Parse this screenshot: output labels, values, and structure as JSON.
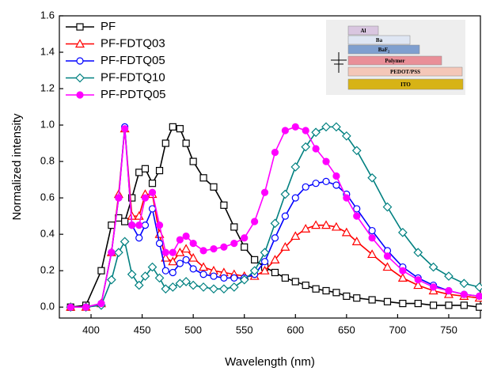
{
  "chart_data": {
    "type": "line",
    "xlabel": "Wavelength (nm)",
    "ylabel": "Normalized intensity",
    "x": [
      380,
      395,
      410,
      420,
      427,
      433,
      440,
      447,
      453,
      460,
      467,
      473,
      480,
      487,
      493,
      500,
      510,
      520,
      530,
      540,
      550,
      560,
      570,
      580,
      590,
      600,
      610,
      620,
      630,
      640,
      650,
      660,
      675,
      690,
      705,
      720,
      735,
      750,
      765,
      780
    ],
    "series": [
      {
        "name": "PF",
        "color": "#000000",
        "marker": "square",
        "values": [
          0,
          0.01,
          0.2,
          0.45,
          0.49,
          0.47,
          0.6,
          0.74,
          0.76,
          0.68,
          0.75,
          0.9,
          0.99,
          0.98,
          0.9,
          0.8,
          0.71,
          0.66,
          0.56,
          0.44,
          0.33,
          0.26,
          0.22,
          0.19,
          0.16,
          0.14,
          0.12,
          0.1,
          0.09,
          0.08,
          0.06,
          0.05,
          0.04,
          0.03,
          0.02,
          0.02,
          0.01,
          0.01,
          0.01,
          0
        ]
      },
      {
        "name": "PF-FDTQ03",
        "color": "#ff0000",
        "marker": "triangle",
        "values": [
          0,
          0,
          0.02,
          0.3,
          0.62,
          0.98,
          0.5,
          0.5,
          0.62,
          0.62,
          0.4,
          0.27,
          0.25,
          0.3,
          0.32,
          0.27,
          0.22,
          0.2,
          0.19,
          0.18,
          0.17,
          0.17,
          0.2,
          0.26,
          0.33,
          0.39,
          0.43,
          0.45,
          0.45,
          0.44,
          0.41,
          0.36,
          0.29,
          0.22,
          0.16,
          0.12,
          0.09,
          0.07,
          0.06,
          0.05
        ]
      },
      {
        "name": "PF-FDTQ05",
        "color": "#0000ff",
        "marker": "circle",
        "values": [
          0,
          0,
          0.02,
          0.3,
          0.6,
          0.99,
          0.45,
          0.38,
          0.45,
          0.54,
          0.35,
          0.2,
          0.19,
          0.24,
          0.26,
          0.21,
          0.18,
          0.17,
          0.16,
          0.16,
          0.16,
          0.18,
          0.25,
          0.38,
          0.5,
          0.6,
          0.66,
          0.68,
          0.69,
          0.67,
          0.62,
          0.54,
          0.42,
          0.31,
          0.22,
          0.16,
          0.12,
          0.09,
          0.07,
          0.06
        ]
      },
      {
        "name": "PF-FDTQ10",
        "color": "#008080",
        "marker": "diamond",
        "values": [
          0,
          0,
          0.01,
          0.15,
          0.3,
          0.36,
          0.18,
          0.12,
          0.17,
          0.22,
          0.16,
          0.1,
          0.11,
          0.13,
          0.14,
          0.12,
          0.11,
          0.1,
          0.1,
          0.11,
          0.15,
          0.2,
          0.3,
          0.46,
          0.62,
          0.77,
          0.88,
          0.96,
          0.99,
          0.99,
          0.94,
          0.86,
          0.71,
          0.55,
          0.41,
          0.3,
          0.22,
          0.17,
          0.13,
          0.11
        ]
      },
      {
        "name": "PF-PDTQ05",
        "color": "#ff00ff",
        "marker": "filled-circle",
        "values": [
          0,
          0,
          0.02,
          0.3,
          0.6,
          0.98,
          0.45,
          0.45,
          0.6,
          0.63,
          0.45,
          0.3,
          0.3,
          0.37,
          0.39,
          0.35,
          0.31,
          0.32,
          0.33,
          0.35,
          0.38,
          0.47,
          0.63,
          0.85,
          0.97,
          0.99,
          0.97,
          0.87,
          0.8,
          0.72,
          0.6,
          0.5,
          0.38,
          0.28,
          0.2,
          0.15,
          0.11,
          0.09,
          0.07,
          0.06
        ]
      }
    ],
    "xlim": [
      369,
      781
    ],
    "xticks": [
      400,
      450,
      500,
      550,
      600,
      650,
      700,
      750
    ],
    "ylim": [
      -0.06,
      1.6
    ],
    "yticks": [
      {
        "value": 0,
        "label": "0.0"
      },
      0.2,
      0.4,
      0.6,
      0.8,
      {
        "value": 1,
        "label": "1.0"
      },
      1.2,
      1.4,
      1.6
    ],
    "legend": "upper left",
    "inset_layers": [
      "Al",
      "Ba",
      "BaF₂",
      "Polymer",
      "PEDOT/PSS",
      "ITO"
    ]
  }
}
